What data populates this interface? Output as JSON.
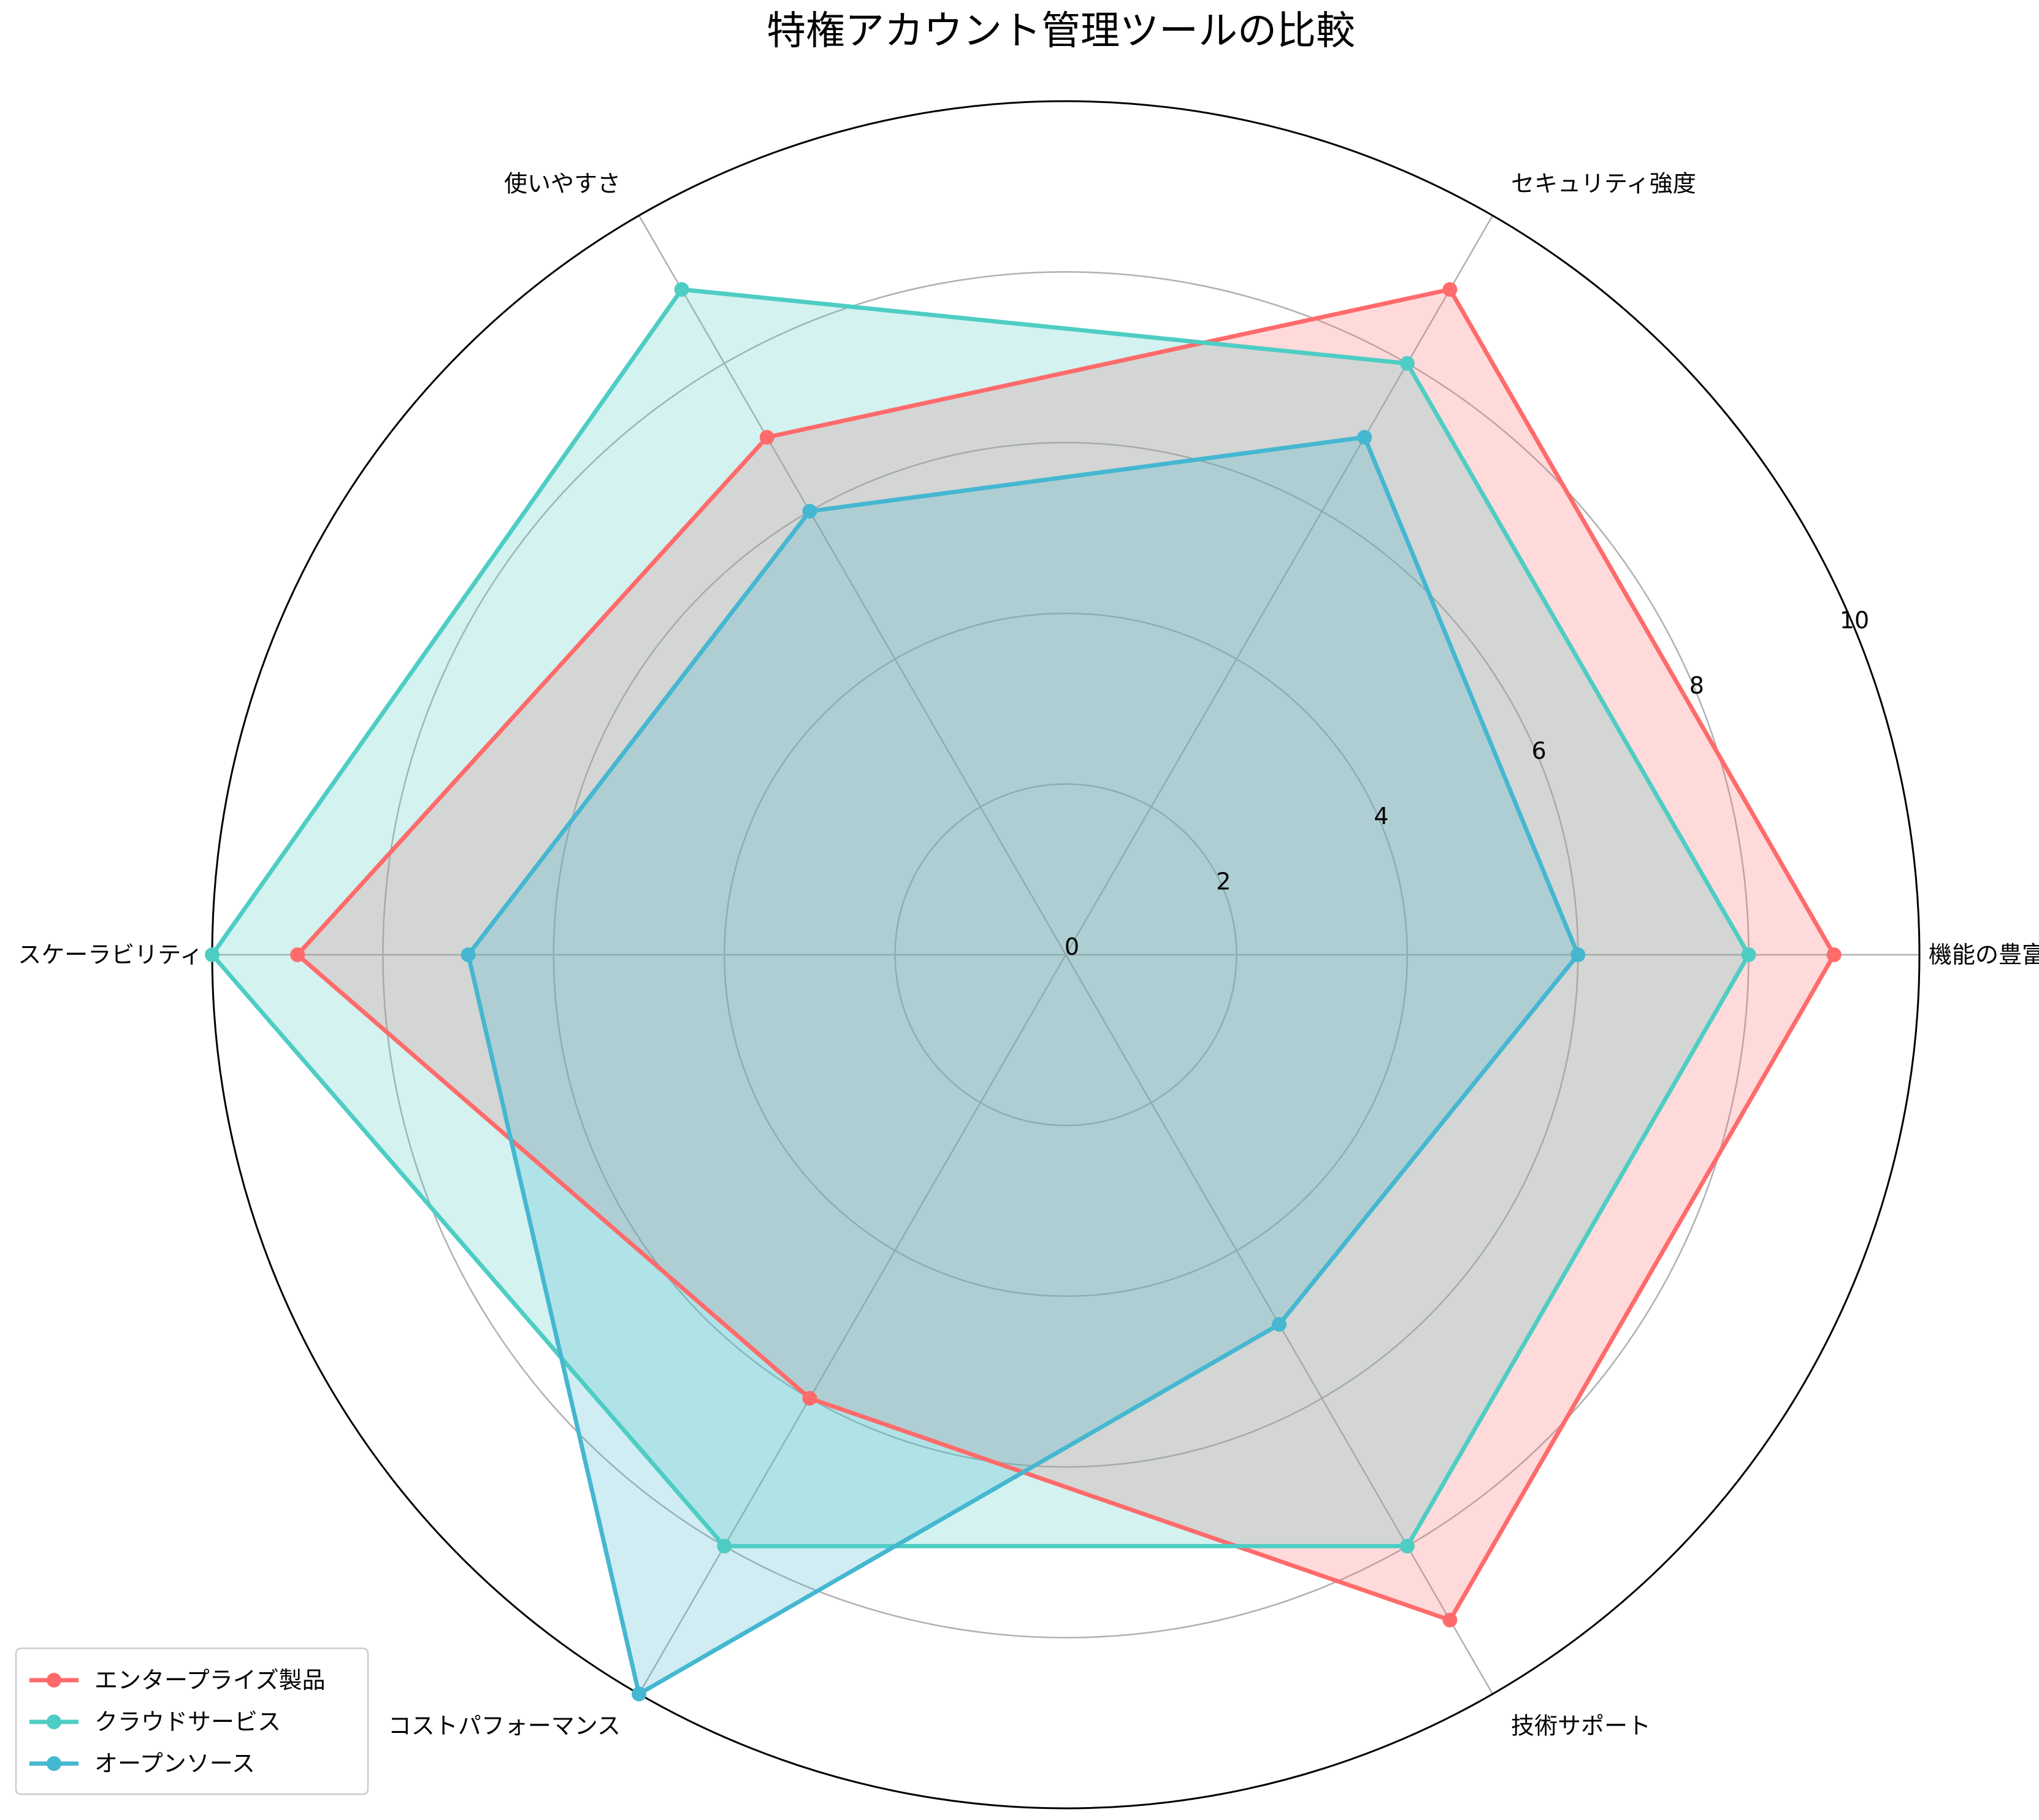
{
  "chart_data": {
    "type": "radar",
    "title": "特権アカウント管理ツールの比較",
    "categories": [
      "機能の豊富さ",
      "セキュリティ強度",
      "使いやすさ",
      "スケーラビリティ",
      "コストパフォーマンス",
      "技術サポート"
    ],
    "series": [
      {
        "name": "エンタープライズ製品",
        "values": [
          9,
          9,
          7,
          9,
          6,
          9
        ],
        "color": "#FF6B6B"
      },
      {
        "name": "クラウドサービス",
        "values": [
          8,
          8,
          9,
          10,
          8,
          8
        ],
        "color": "#4ECDC4"
      },
      {
        "name": "オープンソース",
        "values": [
          6,
          7,
          6,
          7,
          10,
          5
        ],
        "color": "#45B7D1"
      }
    ],
    "rlim": [
      0,
      10
    ],
    "rticks": [
      "0",
      "2",
      "4",
      "6",
      "8",
      "10"
    ],
    "grid": true,
    "legend_position": "lower-left"
  }
}
